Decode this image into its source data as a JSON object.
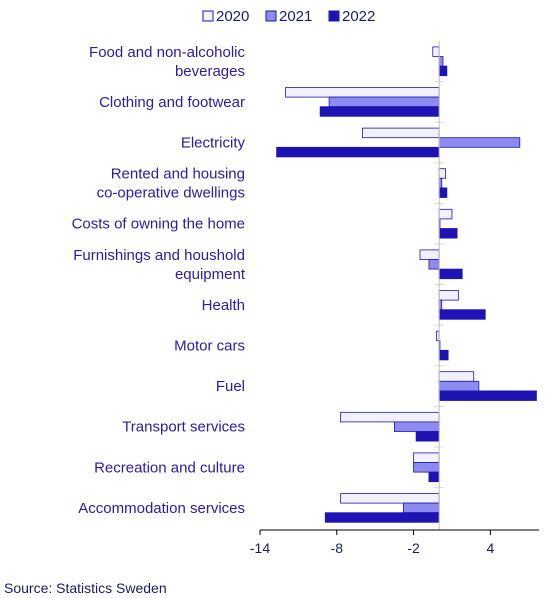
{
  "chart_data": {
    "type": "bar",
    "orientation": "horizontal",
    "title": "",
    "xlabel": "",
    "ylabel": "",
    "categories": [
      "Food and non-alcoholic beverages",
      "Clothing and footwear",
      "Electricity",
      "Rented and housing co-operative dwellings",
      "Costs of owning the home",
      "Furnishings and houshold equipment",
      "Health",
      "Motor cars",
      "Fuel",
      "Transport services",
      "Recreation and culture",
      "Accommodation services"
    ],
    "series": [
      {
        "name": "2020",
        "color": "#f1f1fb",
        "values": [
          -0.5,
          -12,
          -6,
          0.5,
          1,
          -1.5,
          1.5,
          -0.2,
          2.7,
          -7.7,
          -2,
          -7.7
        ]
      },
      {
        "name": "2021",
        "color": "#8c8cf0",
        "values": [
          0.3,
          -8.6,
          6.3,
          0.2,
          0,
          -0.8,
          0.2,
          0,
          3.1,
          -3.5,
          -2,
          -2.8
        ]
      },
      {
        "name": "2022",
        "color": "#1e14b4",
        "values": [
          0.6,
          -9.3,
          -12.7,
          0.6,
          1.4,
          1.8,
          3.6,
          0.7,
          7.6,
          -1.8,
          -0.8,
          -8.9
        ]
      }
    ],
    "xlim": [
      -14,
      7.8
    ],
    "xticks": [
      -14,
      -8,
      -2,
      4
    ],
    "legend": "top-right",
    "grid": false
  },
  "source": "Source: Statistics Sweden"
}
